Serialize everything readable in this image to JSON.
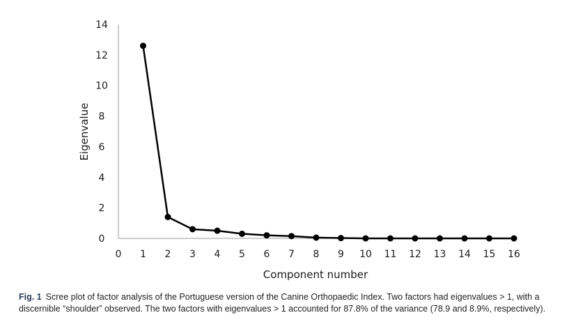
{
  "chart_data": {
    "type": "line",
    "xlabel": "Component number",
    "ylabel": "Eigenvalue",
    "xlim": [
      0,
      16
    ],
    "ylim": [
      0,
      14
    ],
    "x_ticks": [
      "0",
      "1",
      "2",
      "3",
      "4",
      "5",
      "6",
      "7",
      "8",
      "9",
      "10",
      "11",
      "12",
      "13",
      "14",
      "15",
      "16"
    ],
    "y_ticks": [
      "0",
      "2",
      "4",
      "6",
      "8",
      "10",
      "12",
      "14"
    ],
    "grid": false,
    "legend": "none",
    "line_color": "#000000",
    "series": [
      {
        "x": [
          1,
          2,
          3,
          4,
          5,
          6,
          7,
          8,
          9,
          10,
          11,
          12,
          13,
          14,
          15,
          16
        ],
        "values": [
          12.6,
          1.4,
          0.6,
          0.5,
          0.3,
          0.2,
          0.15,
          0.05,
          0.02,
          0.0,
          0.0,
          0.0,
          0.0,
          0.0,
          0.0,
          0.0
        ]
      }
    ]
  },
  "caption": {
    "label": "Fig. 1",
    "text": "Scree plot of factor analysis of the Portuguese version of the Canine Orthopaedic Index. Two factors had eigenvalues > 1, with a discernible “shoulder” observed. The two factors with eigenvalues > 1 accounted for 87.8% of the variance (78.9 and 8.9%, respectively)."
  }
}
